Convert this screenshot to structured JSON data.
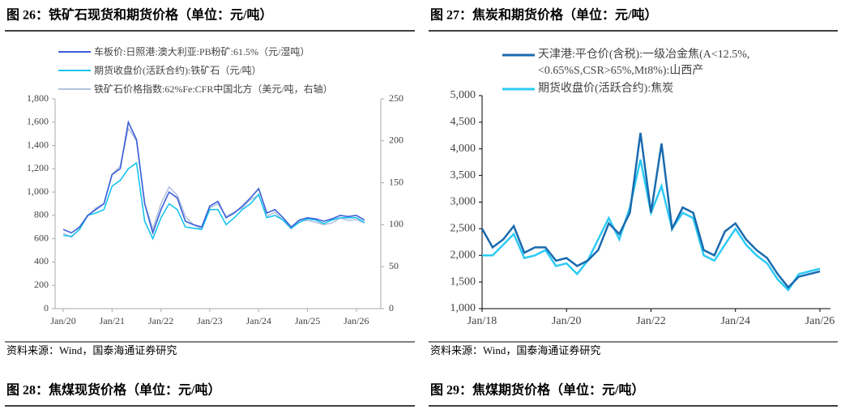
{
  "chart_data": [
    {
      "type": "line",
      "title": "图 26：铁矿石现货和期货价格（单位：元/吨）",
      "x": [
        "2020-01",
        "2020-03",
        "2020-05",
        "2020-07",
        "2020-09",
        "2020-11",
        "2021-01",
        "2021-03",
        "2021-05",
        "2021-07",
        "2021-09",
        "2021-11",
        "2022-01",
        "2022-03",
        "2022-05",
        "2022-07",
        "2022-09",
        "2022-11",
        "2023-01",
        "2023-03",
        "2023-05",
        "2023-07",
        "2023-09",
        "2023-11",
        "2024-01",
        "2024-03",
        "2024-05",
        "2024-07",
        "2024-09",
        "2024-11",
        "2025-01",
        "2025-03",
        "2025-05",
        "2025-07",
        "2025-09",
        "2025-11",
        "2026-01",
        "2026-03"
      ],
      "xlim": [
        "2019-11",
        "2026-07"
      ],
      "xticks": [
        {
          "value": "2020-01",
          "label": "Jan/20"
        },
        {
          "value": "2021-01",
          "label": "Jan/21"
        },
        {
          "value": "2022-01",
          "label": "Jan/22"
        },
        {
          "value": "2023-01",
          "label": "Jan/23"
        },
        {
          "value": "2024-01",
          "label": "Jan/24"
        },
        {
          "value": "2025-01",
          "label": "Jan/25"
        },
        {
          "value": "2026-01",
          "label": "Jan/26"
        }
      ],
      "ylim": [
        0,
        1800
      ],
      "yticks": [
        0,
        200,
        400,
        600,
        800,
        {
          "value": 1000,
          "label": "1,000"
        },
        {
          "value": 1200,
          "label": "1,200"
        },
        {
          "value": 1400,
          "label": "1,400"
        },
        {
          "value": 1600,
          "label": "1,600"
        },
        {
          "value": 1800,
          "label": "1,800"
        }
      ],
      "y2lim": [
        0,
        250
      ],
      "y2ticks": [
        0,
        50,
        100,
        150,
        200,
        250
      ],
      "series": [
        {
          "name": "车板价:日照港:澳大利亚:PB粉矿:61.5%（元/湿吨）",
          "color": "#3a5fd9",
          "values": [
            680,
            650,
            700,
            800,
            850,
            900,
            1150,
            1200,
            1600,
            1450,
            900,
            650,
            850,
            1000,
            950,
            750,
            720,
            700,
            880,
            920,
            780,
            820,
            880,
            950,
            1030,
            820,
            850,
            780,
            700,
            760,
            780,
            770,
            750,
            770,
            800,
            790,
            800,
            760
          ]
        },
        {
          "name": "期货收盘价(活跃合约):铁矿石（元/吨）",
          "color": "#19c3ee",
          "values": [
            630,
            620,
            680,
            800,
            820,
            850,
            1050,
            1100,
            1200,
            1250,
            750,
            600,
            780,
            900,
            850,
            700,
            690,
            680,
            850,
            850,
            720,
            780,
            850,
            900,
            980,
            780,
            800,
            760,
            690,
            740,
            770,
            760,
            730,
            760,
            780,
            780,
            780,
            740
          ]
        },
        {
          "name": "铁矿石价格指数:62%Fe:CFR中国北方（美元/吨，右轴）",
          "color": "#b4c3de",
          "axis": "y2",
          "values": [
            90,
            85,
            95,
            110,
            120,
            125,
            160,
            170,
            215,
            200,
            125,
            95,
            125,
            145,
            135,
            110,
            100,
            95,
            120,
            125,
            110,
            115,
            120,
            130,
            135,
            110,
            115,
            105,
            95,
            105,
            105,
            103,
            100,
            102,
            108,
            105,
            106,
            102
          ]
        }
      ]
    },
    {
      "type": "line",
      "title": "图 27：焦炭和期货价格（单位：元/吨）",
      "x": [
        "2018-01",
        "2018-04",
        "2018-07",
        "2018-10",
        "2019-01",
        "2019-04",
        "2019-07",
        "2019-10",
        "2020-01",
        "2020-04",
        "2020-07",
        "2020-10",
        "2021-01",
        "2021-04",
        "2021-07",
        "2021-10",
        "2022-01",
        "2022-04",
        "2022-07",
        "2022-10",
        "2023-01",
        "2023-04",
        "2023-07",
        "2023-10",
        "2024-01",
        "2024-04",
        "2024-07",
        "2024-10",
        "2025-01",
        "2025-04",
        "2025-07",
        "2025-10",
        "2026-01"
      ],
      "xlim": [
        "2018-01",
        "2026-04"
      ],
      "xticks": [
        {
          "value": "2018-01",
          "label": "Jan/18"
        },
        {
          "value": "2020-01",
          "label": "Jan/20"
        },
        {
          "value": "2022-01",
          "label": "Jan/22"
        },
        {
          "value": "2024-01",
          "label": "Jan/24"
        },
        {
          "value": "2026-01",
          "label": "Jan/26"
        }
      ],
      "ylim": [
        1000,
        5000
      ],
      "yticks": [
        {
          "value": 1000,
          "label": "1,000"
        },
        {
          "value": 1500,
          "label": "1,500"
        },
        {
          "value": 2000,
          "label": "2,000"
        },
        {
          "value": 2500,
          "label": "2,500"
        },
        {
          "value": 3000,
          "label": "3,000"
        },
        {
          "value": 3500,
          "label": "3,500"
        },
        {
          "value": 4000,
          "label": "4,000"
        },
        {
          "value": 4500,
          "label": "4,500"
        },
        {
          "value": 5000,
          "label": "5,000"
        }
      ],
      "series": [
        {
          "name": "天津港:平仓价(含税):一级冶金焦(A<12.5%,<0.65%S,CSR>65%,Mt8%):山西产",
          "color": "#1a6aae",
          "values": [
            2500,
            2150,
            2300,
            2550,
            2050,
            2150,
            2150,
            1900,
            1950,
            1800,
            1900,
            2100,
            2600,
            2400,
            2800,
            4300,
            2800,
            4100,
            2500,
            2900,
            2800,
            2100,
            2000,
            2450,
            2600,
            2300,
            2100,
            1950,
            1650,
            1400,
            1600,
            1650,
            1700
          ]
        },
        {
          "name": "期货收盘价(活跃合约):焦炭",
          "color": "#2ccbf5",
          "values": [
            2000,
            2000,
            2200,
            2400,
            1950,
            2000,
            2100,
            1800,
            1850,
            1650,
            1900,
            2300,
            2700,
            2300,
            2900,
            3800,
            2800,
            3300,
            2500,
            2800,
            2700,
            2000,
            1900,
            2200,
            2500,
            2200,
            2000,
            1850,
            1550,
            1350,
            1650,
            1700,
            1750
          ]
        }
      ]
    }
  ],
  "sources": [
    "资料来源：Wind，国泰海通证券研究",
    "资料来源：Wind，国泰海通证券研究"
  ],
  "next_headings": [
    "图 28：焦煤现货价格（单位：元/吨）",
    "图 29：焦煤期货价格（单位：元/吨）"
  ]
}
